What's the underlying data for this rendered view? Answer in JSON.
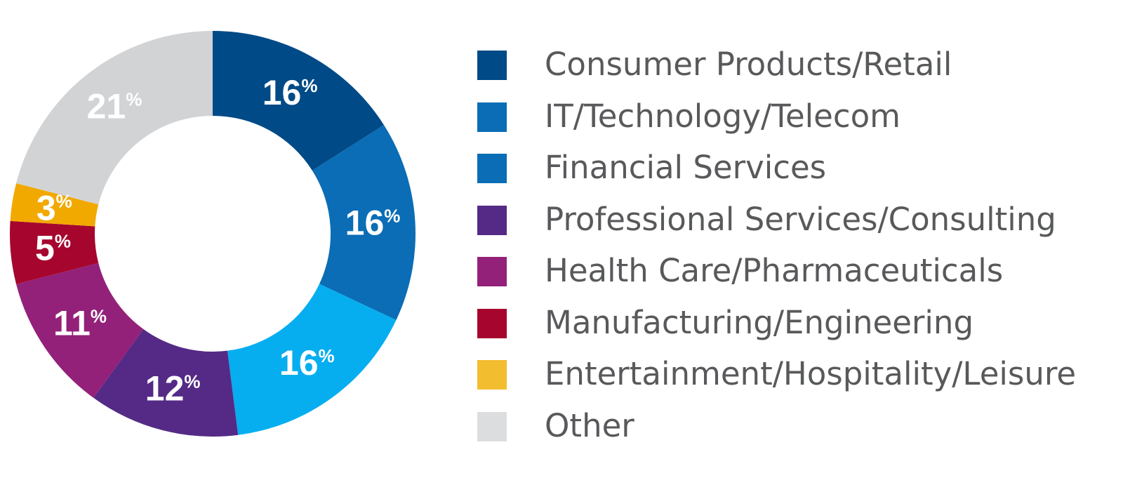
{
  "chart_data": {
    "type": "pie",
    "variant": "donut",
    "legend_position": "right",
    "slices": [
      {
        "label": "Consumer Products/Retail",
        "value": 16,
        "value_label": "16",
        "color": "#004a87"
      },
      {
        "label": "IT/Technology/Telecom",
        "value": 16,
        "value_label": "16",
        "color": "#0a6db5"
      },
      {
        "label": "Financial Services",
        "value": 16,
        "value_label": "16",
        "color": "#06aef0"
      },
      {
        "label": "Professional Services/Consulting",
        "value": 12,
        "value_label": "12",
        "color": "#542a86"
      },
      {
        "label": "Health Care/Pharmaceuticals",
        "value": 11,
        "value_label": "11",
        "color": "#932179"
      },
      {
        "label": "Manufacturing/Engineering",
        "value": 5,
        "value_label": "5",
        "color": "#a6062e"
      },
      {
        "label": "Entertainment/Hospitality/Leisure",
        "value": 3,
        "value_label": "3",
        "color": "#f1a900"
      },
      {
        "label": "Other",
        "value": 21,
        "value_label": "21",
        "color": "#d2d3d5"
      }
    ],
    "legend": [
      {
        "label": "Consumer Products/Retail",
        "color": "#004a87"
      },
      {
        "label": "IT/Technology/Telecom",
        "color": "#0a6db5"
      },
      {
        "label": "Financial Services",
        "color": "#0a6db5"
      },
      {
        "label": "Professional Services/Consulting",
        "color": "#542a86"
      },
      {
        "label": "Health Care/Pharmaceuticals",
        "color": "#932179"
      },
      {
        "label": "Manufacturing/Engineering",
        "color": "#a6062e"
      },
      {
        "label": "Entertainment/Hospitality/Leisure",
        "color": "#f3bd30"
      },
      {
        "label": "Other",
        "color": "#dcdddf"
      }
    ],
    "percent_symbol": "%"
  }
}
